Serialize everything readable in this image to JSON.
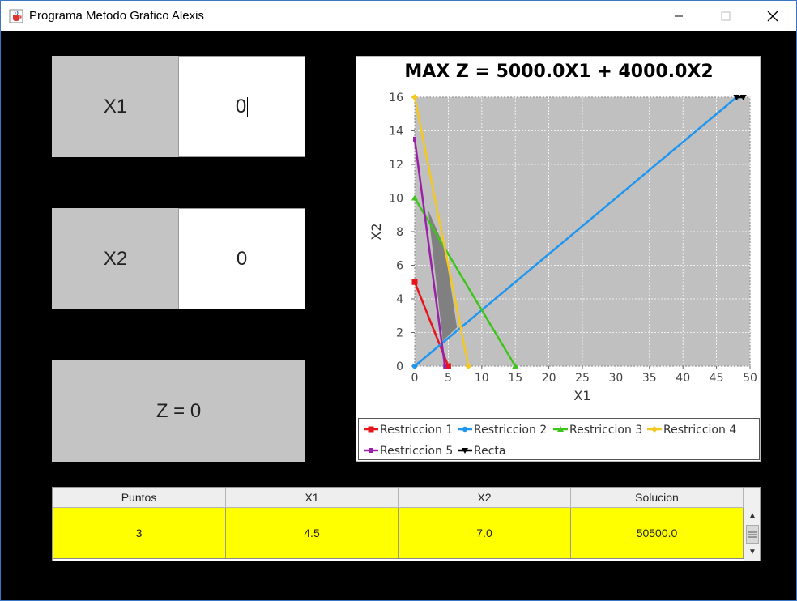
{
  "window": {
    "title": "Programa Metodo Grafico Alexis",
    "controls": {
      "minimize": "—",
      "maximize": "☐",
      "close": "✕"
    },
    "icon": "java-cup-icon"
  },
  "inputs": {
    "x1_label": "X1",
    "x1_value": "0",
    "x2_label": "X2",
    "x2_value": "0",
    "z_label": "Z = 0"
  },
  "chart_data": {
    "type": "line",
    "title": "MAX Z = 5000.0X1 + 4000.0X2",
    "xlabel": "X1",
    "ylabel": "X2",
    "xlim": [
      0,
      50
    ],
    "ylim": [
      0,
      16
    ],
    "xticks": [
      0,
      5,
      10,
      15,
      20,
      25,
      30,
      35,
      40,
      45,
      50
    ],
    "yticks": [
      0,
      2,
      4,
      6,
      8,
      10,
      12,
      14,
      16
    ],
    "grid": true,
    "legend_position": "bottom",
    "series": [
      {
        "name": "Restriccion 1",
        "color": "#e8141b",
        "marker": "square",
        "points": [
          [
            0,
            5
          ],
          [
            5,
            0
          ]
        ]
      },
      {
        "name": "Restriccion 2",
        "color": "#1f96f0",
        "marker": "circle",
        "points": [
          [
            0,
            0
          ],
          [
            48,
            16
          ]
        ]
      },
      {
        "name": "Restriccion 3",
        "color": "#3ec41c",
        "marker": "triangle",
        "points": [
          [
            0,
            10
          ],
          [
            15,
            0
          ]
        ]
      },
      {
        "name": "Restriccion 4",
        "color": "#f5c81f",
        "marker": "diamond",
        "points": [
          [
            0,
            16
          ],
          [
            8,
            0
          ]
        ]
      },
      {
        "name": "Restriccion 5",
        "color": "#9b1fa8",
        "marker": "square-small",
        "points": [
          [
            0,
            13.5
          ],
          [
            4.5,
            0
          ]
        ]
      },
      {
        "name": "Recta",
        "color": "#000000",
        "marker": "triangle-down",
        "points": [
          [
            48,
            16
          ],
          [
            49,
            16
          ]
        ]
      }
    ],
    "feasible_region": [
      [
        2,
        9.3
      ],
      [
        4.5,
        7.0
      ],
      [
        6.3,
        2.3
      ],
      [
        4.2,
        1.5
      ]
    ],
    "feasible_color": "#808080",
    "plot_background": "#c0c0c0"
  },
  "table": {
    "headers": [
      "Puntos",
      "X1",
      "X2",
      "Solucion"
    ],
    "rows": [
      [
        "3",
        "4.5",
        "7.0",
        "50500.0"
      ]
    ],
    "highlight_color": "#ffff00"
  }
}
